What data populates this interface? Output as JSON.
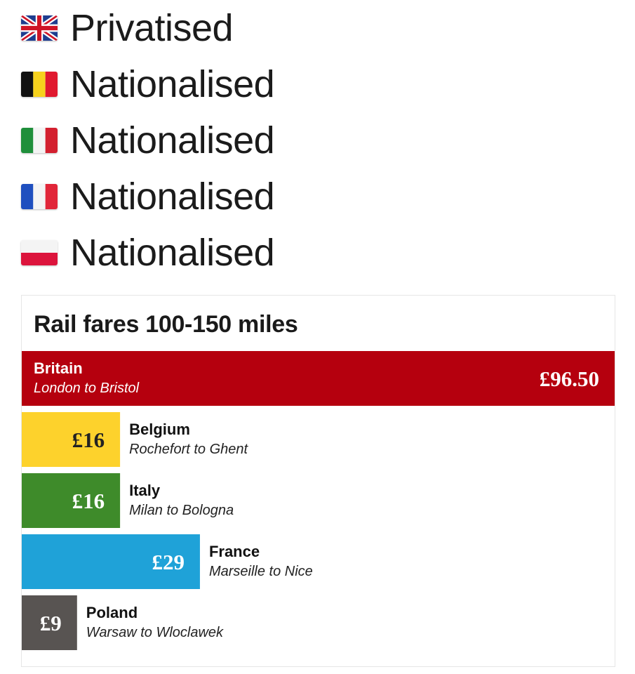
{
  "status_list": [
    {
      "flag": "uk-flag-icon",
      "label": "Privatised"
    },
    {
      "flag": "belgium-flag-icon",
      "label": "Nationalised"
    },
    {
      "flag": "italy-flag-icon",
      "label": "Nationalised"
    },
    {
      "flag": "france-flag-icon",
      "label": "Nationalised"
    },
    {
      "flag": "poland-flag-icon",
      "label": "Nationalised"
    }
  ],
  "chart_data": {
    "type": "bar",
    "title": "Rail fares 100-150 miles",
    "orientation": "horizontal",
    "categories": [
      "Britain",
      "Belgium",
      "Italy",
      "France",
      "Poland"
    ],
    "routes": [
      "London to Bristol",
      "Rochefort to Ghent",
      "Milan to Bologna",
      "Marseille to Nice",
      "Warsaw to Wloclawek"
    ],
    "values": [
      96.5,
      16,
      16,
      29,
      9
    ],
    "value_labels": [
      "£96.50",
      "£16",
      "£16",
      "£29",
      "£9"
    ],
    "colors": [
      "#b5000e",
      "#fdd22c",
      "#3e8b2a",
      "#1fa2d8",
      "#585452"
    ],
    "xlabel": "",
    "ylabel": ""
  }
}
